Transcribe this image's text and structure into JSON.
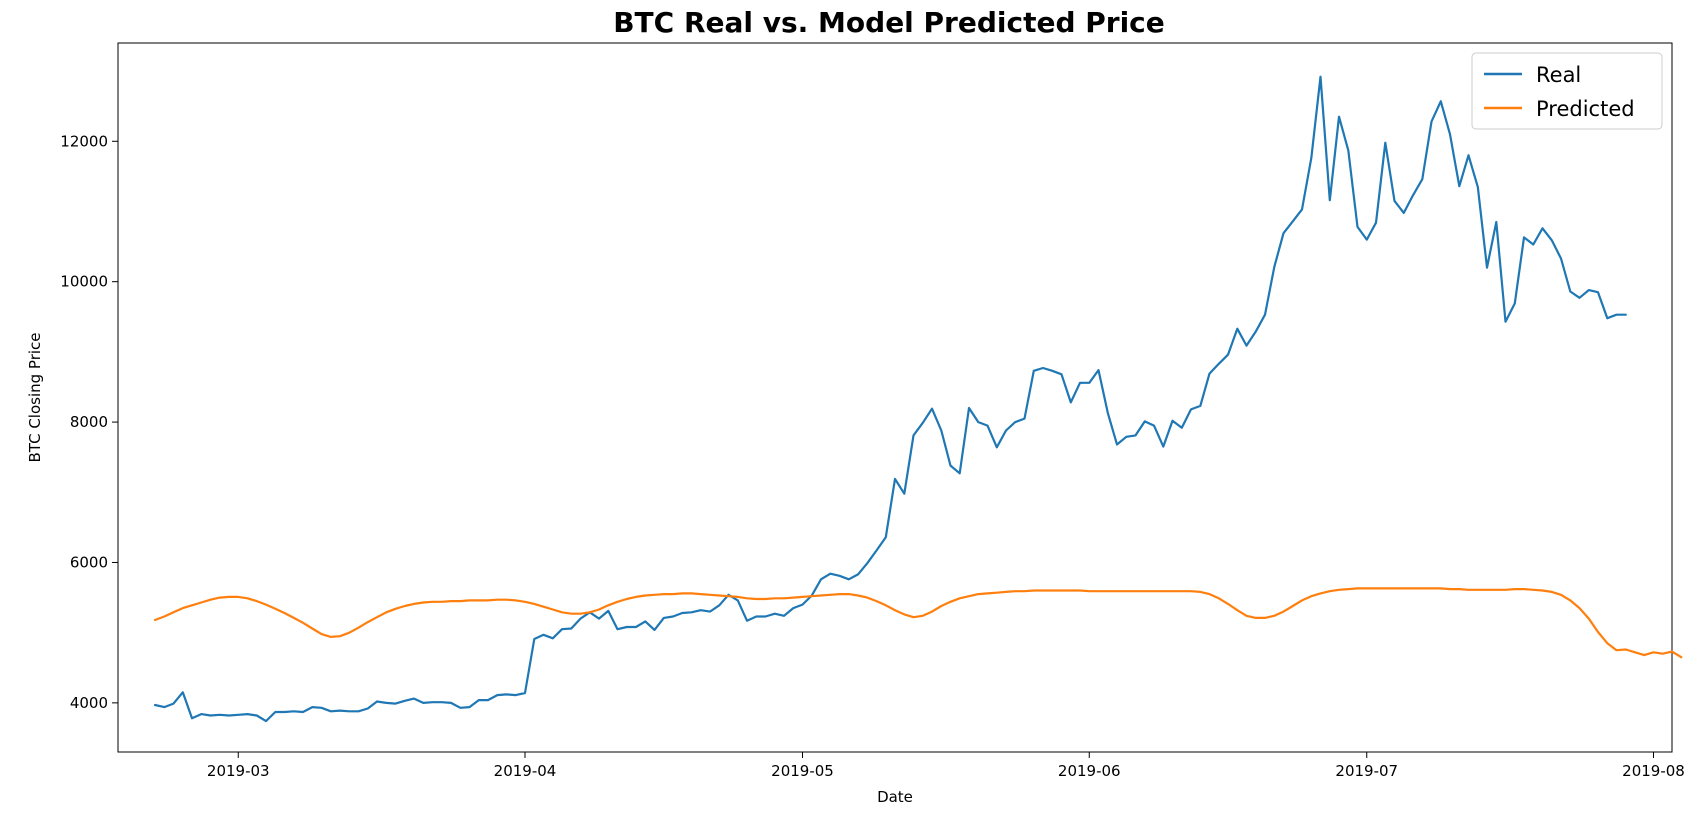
{
  "chart_data": {
    "type": "line",
    "title": "BTC Real vs. Model Predicted Price",
    "xlabel": "Date",
    "ylabel": "BTC Closing Price",
    "x_type": "date",
    "xlim": [
      "2019-02-16",
      "2019-08-03"
    ],
    "ylim": [
      3300,
      13400
    ],
    "x_ticks": [
      "2019-03-01",
      "2019-04-01",
      "2019-05-01",
      "2019-06-01",
      "2019-07-01",
      "2019-08-01"
    ],
    "x_tick_labels": [
      "2019-03",
      "2019-04",
      "2019-05",
      "2019-06",
      "2019-07",
      "2019-08"
    ],
    "y_ticks": [
      4000,
      6000,
      8000,
      10000,
      12000
    ],
    "grid": false,
    "legend_position": "upper right",
    "x_start": "2019-02-20",
    "series": [
      {
        "name": "Real",
        "color": "#1f77b4",
        "values": [
          3970,
          3940,
          3990,
          4150,
          3780,
          3840,
          3820,
          3830,
          3820,
          3830,
          3840,
          3820,
          3740,
          3870,
          3870,
          3880,
          3870,
          3940,
          3930,
          3880,
          3890,
          3880,
          3880,
          3920,
          4020,
          4000,
          3990,
          4030,
          4060,
          4000,
          4010,
          4010,
          4000,
          3930,
          3940,
          4040,
          4040,
          4110,
          4120,
          4110,
          4140,
          4910,
          4970,
          4920,
          5050,
          5060,
          5200,
          5290,
          5200,
          5310,
          5050,
          5080,
          5080,
          5160,
          5040,
          5210,
          5230,
          5280,
          5290,
          5320,
          5300,
          5390,
          5540,
          5460,
          5170,
          5230,
          5230,
          5270,
          5240,
          5350,
          5400,
          5530,
          5760,
          5840,
          5810,
          5760,
          5830,
          5990,
          6170,
          6360,
          7190,
          6980,
          7810,
          7990,
          8190,
          7880,
          7380,
          7270,
          8200,
          8000,
          7950,
          7640,
          7880,
          8000,
          8050,
          8730,
          8770,
          8730,
          8680,
          8280,
          8560,
          8560,
          8740,
          8130,
          7680,
          7790,
          7810,
          8010,
          7950,
          7650,
          8020,
          7920,
          8180,
          8230,
          8690,
          8830,
          8960,
          9330,
          9090,
          9290,
          9530,
          10210,
          10690,
          10860,
          11030,
          11760,
          12920,
          11160,
          12350,
          11870,
          10780,
          10600,
          10840,
          11980,
          11150,
          10980,
          11230,
          11460,
          12280,
          12570,
          12100,
          11360,
          11800,
          11350,
          10200,
          10850,
          9430,
          9690,
          10630,
          10530,
          10760,
          10590,
          10330,
          9860,
          9770,
          9880,
          9850,
          9480,
          9530,
          9530
        ]
      },
      {
        "name": "Predicted",
        "color": "#ff7f0e",
        "values": [
          5180,
          5230,
          5290,
          5350,
          5390,
          5430,
          5470,
          5500,
          5510,
          5510,
          5490,
          5450,
          5400,
          5340,
          5280,
          5210,
          5140,
          5060,
          4980,
          4940,
          4950,
          5000,
          5070,
          5150,
          5220,
          5290,
          5340,
          5380,
          5410,
          5430,
          5440,
          5440,
          5450,
          5450,
          5460,
          5460,
          5460,
          5470,
          5470,
          5460,
          5440,
          5410,
          5370,
          5330,
          5290,
          5270,
          5270,
          5290,
          5330,
          5390,
          5440,
          5480,
          5510,
          5530,
          5540,
          5550,
          5550,
          5560,
          5560,
          5550,
          5540,
          5530,
          5520,
          5510,
          5490,
          5480,
          5480,
          5490,
          5490,
          5500,
          5510,
          5520,
          5530,
          5540,
          5550,
          5550,
          5530,
          5500,
          5450,
          5390,
          5320,
          5260,
          5220,
          5240,
          5300,
          5380,
          5440,
          5490,
          5520,
          5550,
          5560,
          5570,
          5580,
          5590,
          5590,
          5600,
          5600,
          5600,
          5600,
          5600,
          5600,
          5590,
          5590,
          5590,
          5590,
          5590,
          5590,
          5590,
          5590,
          5590,
          5590,
          5590,
          5590,
          5580,
          5550,
          5490,
          5410,
          5320,
          5240,
          5210,
          5210,
          5240,
          5300,
          5380,
          5460,
          5520,
          5560,
          5590,
          5610,
          5620,
          5630,
          5630,
          5630,
          5630,
          5630,
          5630,
          5630,
          5630,
          5630,
          5630,
          5620,
          5620,
          5610,
          5610,
          5610,
          5610,
          5610,
          5620,
          5620,
          5610,
          5600,
          5580,
          5540,
          5460,
          5350,
          5200,
          5010,
          4850,
          4750,
          4760,
          4720,
          4680,
          4720,
          4700,
          4730,
          4650
        ]
      }
    ]
  }
}
